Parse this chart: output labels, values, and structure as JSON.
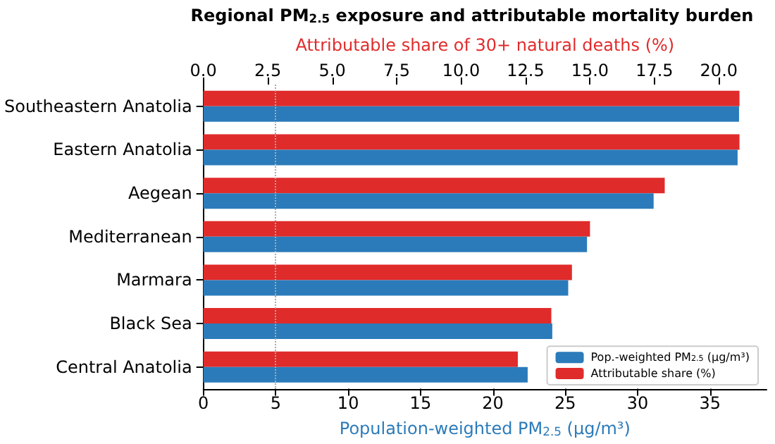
{
  "chart_data": {
    "type": "bar",
    "orientation": "horizontal",
    "title": "Regional PM$_{2.5}$ exposure and attributable mortality burden",
    "xlabel": "Population-weighted PM$_{2.5}$ (μg/m³)",
    "x2label": "Attributable share of 30+ natural deaths (%)",
    "categories": [
      "Southeastern Anatolia",
      "Eastern Anatolia",
      "Aegean",
      "Mediterranean",
      "Marmara",
      "Black Sea",
      "Central Anatolia"
    ],
    "series": [
      {
        "name": "Pop.-weighted PM$_{2.5}$ (μg/m³)",
        "color": "#2b7bba",
        "values": [
          37.0,
          36.9,
          31.1,
          26.5,
          25.2,
          24.1,
          22.4
        ]
      },
      {
        "name": "Attributable share (%)",
        "color": "#e02b2b",
        "axis": "x2",
        "values": [
          20.8,
          20.8,
          17.9,
          15.0,
          14.3,
          13.5,
          12.2
        ]
      }
    ],
    "xlim": [
      0,
      38.9
    ],
    "xticks": [
      0,
      5,
      10,
      15,
      20,
      25,
      30,
      35
    ],
    "x2lim": [
      0,
      21.85
    ],
    "x2ticks": [
      {
        "value": 0,
        "label": "0.0"
      },
      {
        "value": 2.5,
        "label": "2.5"
      },
      {
        "value": 5,
        "label": "5.0"
      },
      {
        "value": 7.5,
        "label": "7.5"
      },
      {
        "value": 10,
        "label": "10.0"
      },
      {
        "value": 12.5,
        "label": "12.5"
      },
      {
        "value": 15,
        "label": "15.0"
      },
      {
        "value": 17.5,
        "label": "17.5"
      },
      {
        "value": 20,
        "label": "20.0"
      }
    ],
    "ref_lines": [
      {
        "axis": "x",
        "value": 5,
        "color": "#aaaaaa",
        "line_style": "dotted"
      }
    ],
    "legend": "bottom right",
    "grid": false
  }
}
